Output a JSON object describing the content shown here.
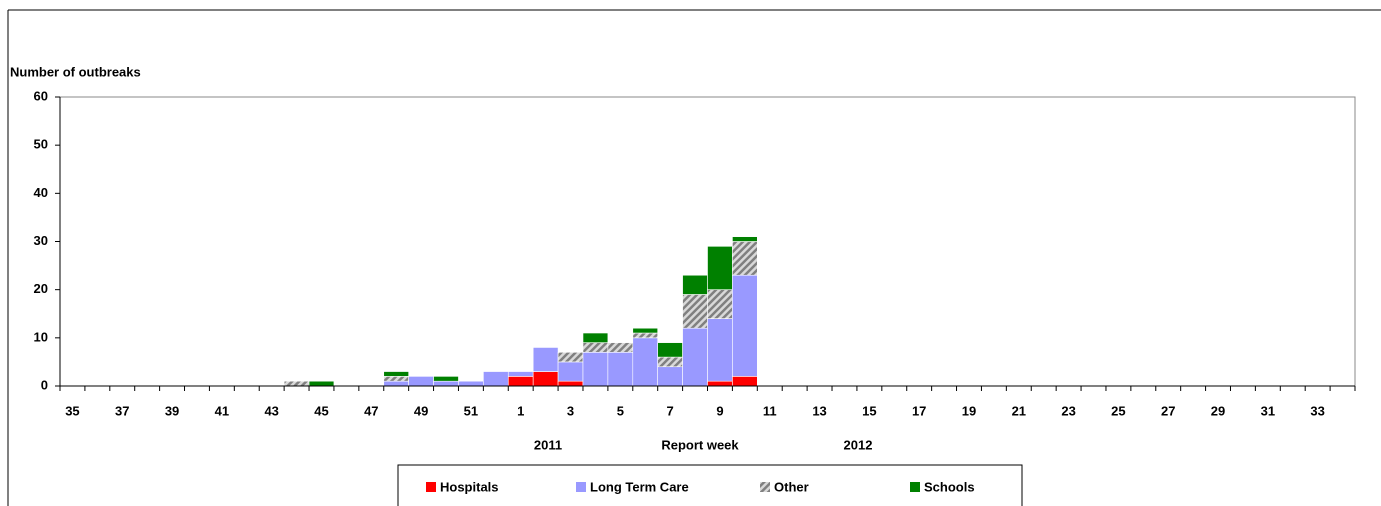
{
  "chart_data": {
    "type": "stacked-bar",
    "y_label": "Number of outbreaks",
    "x_label": "Report week",
    "annotations": [
      "2011",
      "2012"
    ],
    "categories": [
      "35",
      null,
      "37",
      null,
      "39",
      null,
      "41",
      null,
      "43",
      null,
      "45",
      null,
      "47",
      null,
      "49",
      null,
      "51",
      null,
      "1",
      null,
      "3",
      null,
      "5",
      null,
      "7",
      null,
      "9",
      null,
      "11",
      null,
      "13",
      null,
      "15",
      null,
      "17",
      null,
      "19",
      null,
      "21",
      null,
      "23",
      null,
      "25",
      null,
      "27",
      null,
      "29",
      null,
      "31",
      null,
      "33",
      null
    ],
    "series": [
      {
        "name": "Hospitals",
        "color": "#ff0000",
        "values": [
          0,
          0,
          0,
          0,
          0,
          0,
          0,
          0,
          0,
          0,
          0,
          0,
          0,
          0,
          0,
          0,
          0,
          0,
          2,
          3,
          1,
          0,
          0,
          0,
          0,
          0,
          1,
          2,
          0,
          0,
          0,
          0,
          0,
          0,
          0,
          0,
          0,
          0,
          0,
          0,
          0,
          0,
          0,
          0,
          0,
          0,
          0,
          0,
          0,
          0,
          0,
          0
        ]
      },
      {
        "name": "Long Term Care",
        "color": "#9999ff",
        "values": [
          0,
          0,
          0,
          0,
          0,
          0,
          0,
          0,
          0,
          0,
          0,
          0,
          0,
          1,
          2,
          1,
          1,
          3,
          1,
          5,
          4,
          7,
          7,
          10,
          4,
          12,
          13,
          21,
          0,
          0,
          0,
          0,
          0,
          0,
          0,
          0,
          0,
          0,
          0,
          0,
          0,
          0,
          0,
          0,
          0,
          0,
          0,
          0,
          0,
          0,
          0,
          0
        ]
      },
      {
        "name": "Other",
        "color": "#a6a6a6",
        "values": [
          0,
          0,
          0,
          0,
          0,
          0,
          0,
          0,
          0,
          1,
          0,
          0,
          0,
          1,
          0,
          0,
          0,
          0,
          0,
          0,
          2,
          2,
          2,
          1,
          2,
          7,
          6,
          7,
          0,
          0,
          0,
          0,
          0,
          0,
          0,
          0,
          0,
          0,
          0,
          0,
          0,
          0,
          0,
          0,
          0,
          0,
          0,
          0,
          0,
          0,
          0,
          0
        ]
      },
      {
        "name": "Schools",
        "color": "#008000",
        "values": [
          0,
          0,
          0,
          0,
          0,
          0,
          0,
          0,
          0,
          0,
          1,
          0,
          0,
          1,
          0,
          1,
          0,
          0,
          0,
          0,
          0,
          2,
          0,
          1,
          3,
          4,
          9,
          1,
          0,
          0,
          0,
          0,
          0,
          0,
          0,
          0,
          0,
          0,
          0,
          0,
          0,
          0,
          0,
          0,
          0,
          0,
          0,
          0,
          0,
          0,
          0,
          0
        ]
      }
    ],
    "ylim": [
      0,
      60
    ],
    "yticks": [
      0,
      10,
      20,
      30,
      40,
      50,
      60
    ],
    "grid": false,
    "legend": "bottom"
  }
}
